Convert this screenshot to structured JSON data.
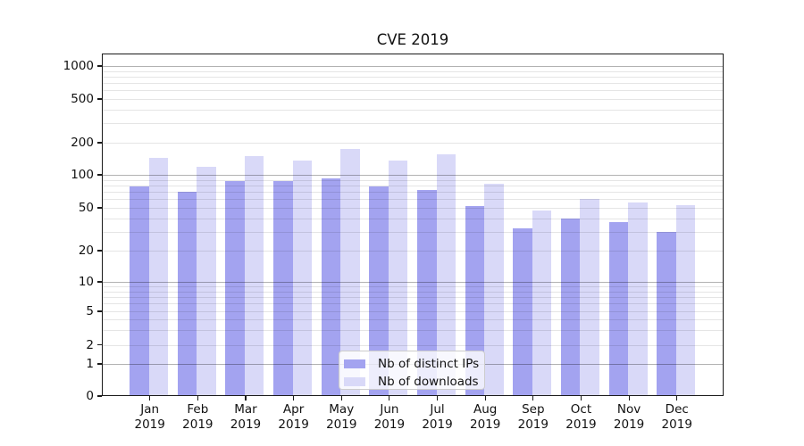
{
  "chart_data": {
    "type": "bar",
    "title": "CVE 2019",
    "categories": [
      {
        "month": "Jan",
        "year": "2019"
      },
      {
        "month": "Feb",
        "year": "2019"
      },
      {
        "month": "Mar",
        "year": "2019"
      },
      {
        "month": "Apr",
        "year": "2019"
      },
      {
        "month": "May",
        "year": "2019"
      },
      {
        "month": "Jun",
        "year": "2019"
      },
      {
        "month": "Jul",
        "year": "2019"
      },
      {
        "month": "Aug",
        "year": "2019"
      },
      {
        "month": "Sep",
        "year": "2019"
      },
      {
        "month": "Oct",
        "year": "2019"
      },
      {
        "month": "Nov",
        "year": "2019"
      },
      {
        "month": "Dec",
        "year": "2019"
      }
    ],
    "series": [
      {
        "name": "Nb of distinct IPs",
        "color": "#a3a3f0",
        "values": [
          79,
          70,
          88,
          87,
          93,
          79,
          73,
          52,
          32,
          40,
          37,
          30
        ]
      },
      {
        "name": "Nb of downloads",
        "color": "#d9d9f8",
        "values": [
          143,
          119,
          149,
          137,
          175,
          136,
          157,
          83,
          47,
          60,
          56,
          53
        ]
      }
    ],
    "y_axis": {
      "scale": "log (linear segment between 0 and 1)",
      "tick_values": [
        0,
        1,
        2,
        5,
        10,
        20,
        50,
        100,
        200,
        500,
        1000
      ],
      "major_grid_values": [
        1,
        10,
        100,
        1000
      ],
      "grid": true
    },
    "xlabel": "",
    "ylabel": "",
    "legend_position": "bottom-center"
  },
  "colors": {
    "grid_major": "#b0b0b0",
    "grid_minor": "#e7e7e7",
    "spine": "#1a1a1a",
    "text": "#111111",
    "legend_border": "#cccccc",
    "legend_background": "rgba(255,255,255,0.8)"
  }
}
